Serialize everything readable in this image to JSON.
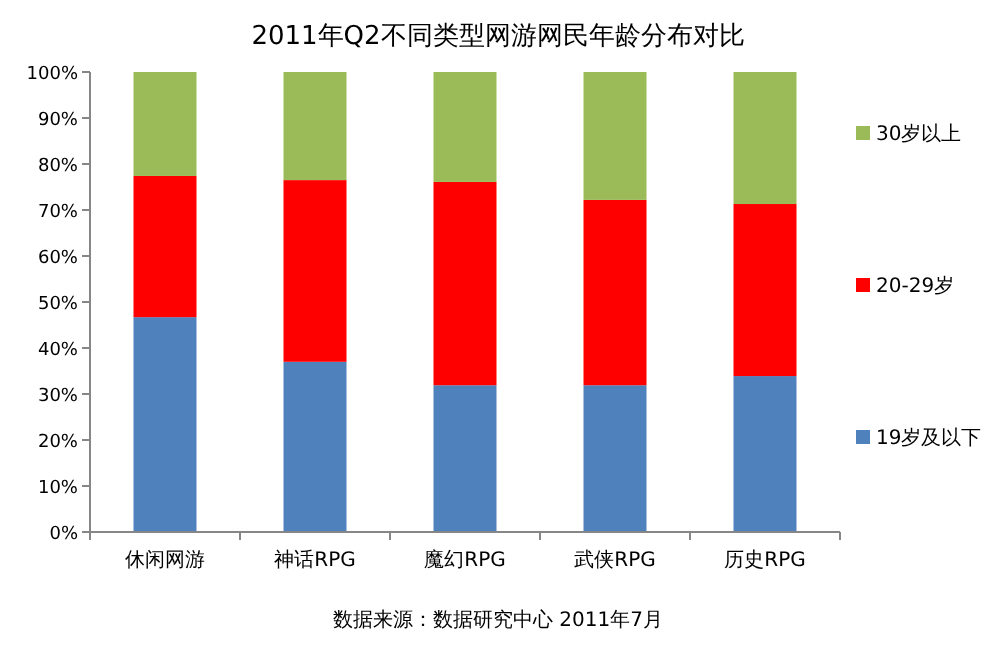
{
  "chart_data": {
    "type": "bar",
    "stacked": true,
    "title": "2011年Q2不同类型网游网民年龄分布对比",
    "categories": [
      "休闲网游",
      "神话RPG",
      "魔幻RPG",
      "武侠RPG",
      "历史RPG"
    ],
    "series": [
      {
        "name": "19岁及以下",
        "color": "#4f81bd",
        "values": [
          46.7,
          37.0,
          31.9,
          31.9,
          33.9
        ]
      },
      {
        "name": "20-29岁",
        "color": "#ff0000",
        "values": [
          30.7,
          39.5,
          44.2,
          40.3,
          37.4
        ]
      },
      {
        "name": "30岁以上",
        "color": "#9bbb59",
        "values": [
          22.6,
          23.5,
          23.9,
          27.8,
          28.7
        ]
      }
    ],
    "ylim": [
      0,
      100
    ],
    "yticks": [
      {
        "value": 0,
        "label": "0%"
      },
      {
        "value": 10,
        "label": "10%"
      },
      {
        "value": 20,
        "label": "20%"
      },
      {
        "value": 30,
        "label": "30%"
      },
      {
        "value": 40,
        "label": "40%"
      },
      {
        "value": 50,
        "label": "50%"
      },
      {
        "value": 60,
        "label": "60%"
      },
      {
        "value": 70,
        "label": "70%"
      },
      {
        "value": 80,
        "label": "80%"
      },
      {
        "value": 90,
        "label": "90%"
      },
      {
        "value": 100,
        "label": "100%"
      }
    ],
    "grid": false,
    "legend": "right",
    "annotations": [
      "数据来源：数据研究中心 2011年7月"
    ]
  }
}
